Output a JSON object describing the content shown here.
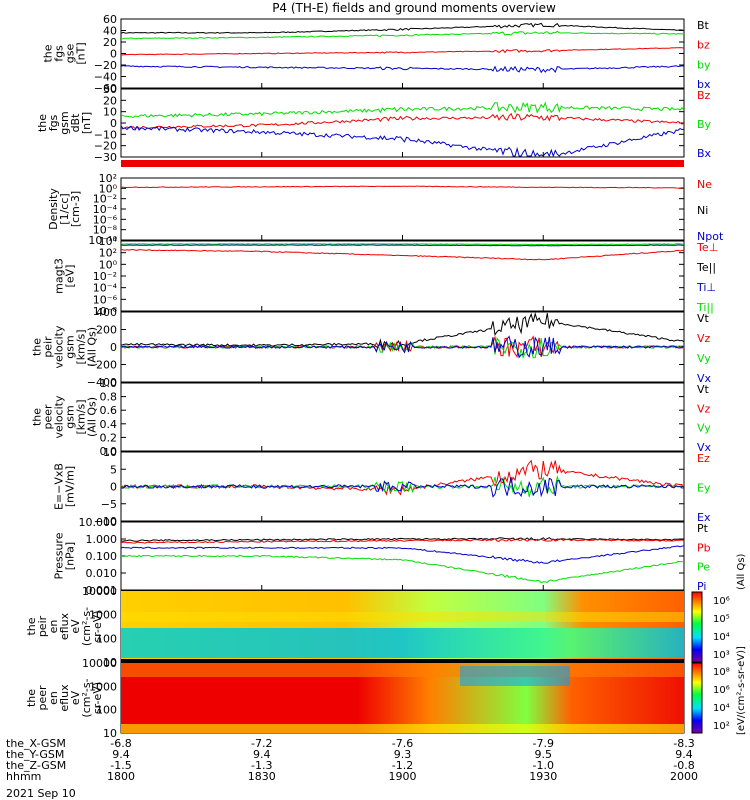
{
  "title": "P4 (TH-E) fields and ground moments overview",
  "colors": {
    "black": "#000000",
    "red": "#ee0000",
    "green": "#00dd00",
    "blue": "#0000cc"
  },
  "x_axis": {
    "rows": [
      {
        "label": "the_X-GSM",
        "ticks": [
          "-6.8",
          "-7.2",
          "-7.6",
          "-7.9",
          "-8.3"
        ]
      },
      {
        "label": "the_Y-GSM",
        "ticks": [
          "9.4",
          "9.4",
          "9.3",
          "9.5",
          "9.4"
        ]
      },
      {
        "label": "the_Z-GSM",
        "ticks": [
          "-1.5",
          "-1.3",
          "-1.2",
          "-1.0",
          "-0.8"
        ]
      },
      {
        "label": "hhmm",
        "ticks": [
          "1800",
          "1830",
          "1900",
          "1930",
          "2000"
        ]
      }
    ],
    "date": "2021 Sep 10"
  },
  "panels": [
    {
      "id": "p1",
      "ylabel": [
        "the",
        "fgs",
        "gse",
        "[nT]"
      ],
      "yticks": [
        "60",
        "40",
        "20",
        "0",
        "−20",
        "−40",
        "−60"
      ],
      "ylim": [
        -60,
        60
      ],
      "legend": [
        {
          "text": "Bt",
          "color": "#000000"
        },
        {
          "text": "bz",
          "color": "#ee0000"
        },
        {
          "text": "by",
          "color": "#00dd00"
        },
        {
          "text": "bx",
          "color": "#0000cc"
        }
      ]
    },
    {
      "id": "p2",
      "ylabel": [
        "the",
        "fgs",
        "gsm",
        "dBt",
        "[nT]"
      ],
      "yticks": [
        "30",
        "20",
        "10",
        "0",
        "−10",
        "−20",
        "−30"
      ],
      "ylim": [
        -30,
        30
      ],
      "legend": [
        {
          "text": "Bz",
          "color": "#ee0000"
        },
        {
          "text": "By",
          "color": "#00dd00"
        },
        {
          "text": "Bx",
          "color": "#0000cc"
        }
      ]
    },
    {
      "id": "p3",
      "ylabel": [
        "Density",
        "[1/cc]",
        "[cm-3]"
      ],
      "yticks": [
        "10²",
        "10⁰",
        "10⁻²",
        "10⁻⁴",
        "10⁻⁶",
        "10⁻⁸",
        "10⁻¹⁰"
      ],
      "ylim": [
        -10,
        2
      ],
      "log": true,
      "legend": [
        {
          "text": "Ne",
          "color": "#ee0000"
        },
        {
          "text": "Ni",
          "color": "#000000"
        },
        {
          "text": "Npot",
          "color": "#0000cc"
        }
      ]
    },
    {
      "id": "p4",
      "ylabel": [
        "magt3",
        "[eV]"
      ],
      "yticks": [
        "10⁴",
        "10²",
        "10⁰",
        "10⁻²",
        "10⁻⁴",
        "10⁻⁶",
        "10⁻⁸"
      ],
      "ylim": [
        -8,
        4
      ],
      "log": true,
      "legend": [
        {
          "text": "Te⊥",
          "color": "#ee0000"
        },
        {
          "text": "Te||",
          "color": "#000000"
        },
        {
          "text": "Ti⊥",
          "color": "#0000cc"
        },
        {
          "text": "Ti||",
          "color": "#00dd00"
        }
      ]
    },
    {
      "id": "p5",
      "ylabel": [
        "the",
        "peir",
        "velocity",
        "gsm",
        "[km/s]",
        "(All Qs)"
      ],
      "yticks": [
        "400",
        "200",
        "0",
        "−200",
        "−400"
      ],
      "ylim": [
        -400,
        400
      ],
      "legend": [
        {
          "text": "Vt",
          "color": "#000000"
        },
        {
          "text": "Vz",
          "color": "#ee0000"
        },
        {
          "text": "Vy",
          "color": "#00dd00"
        },
        {
          "text": "Vx",
          "color": "#0000cc"
        }
      ]
    },
    {
      "id": "p6",
      "ylabel": [
        "the",
        "peer",
        "velocity",
        "gsm",
        "[km/s]",
        "(All Qs)"
      ],
      "yticks": [
        "1.0",
        "0.8",
        "0.6",
        "0.4",
        "0.2",
        "0.0"
      ],
      "ylim": [
        0,
        1
      ],
      "legend": [
        {
          "text": "Vt",
          "color": "#000000"
        },
        {
          "text": "Vz",
          "color": "#ee0000"
        },
        {
          "text": "Vy",
          "color": "#00dd00"
        },
        {
          "text": "Vx",
          "color": "#0000cc"
        }
      ]
    },
    {
      "id": "p7",
      "ylabel": [
        "E=−VxB",
        "[mV/m]"
      ],
      "yticks": [
        "10",
        "5",
        "0",
        "−5",
        "−10"
      ],
      "ylim": [
        -10,
        10
      ],
      "legend": [
        {
          "text": "Ez",
          "color": "#ee0000"
        },
        {
          "text": "Ey",
          "color": "#00dd00"
        },
        {
          "text": "Ex",
          "color": "#0000cc"
        }
      ]
    },
    {
      "id": "p8",
      "ylabel": [
        "Pressure",
        "[nPa]"
      ],
      "yticks": [
        "10.000",
        "1.000",
        "0.100",
        "0.010",
        "0.001"
      ],
      "ylim": [
        -3,
        1
      ],
      "log": true,
      "legend": [
        {
          "text": "Pt",
          "color": "#000000"
        },
        {
          "text": "Pb",
          "color": "#ee0000"
        },
        {
          "text": "Pe",
          "color": "#00dd00"
        },
        {
          "text": "Pi",
          "color": "#0000cc"
        }
      ]
    },
    {
      "id": "p9",
      "ylabel": [
        "the",
        "peir",
        "en",
        "eflux",
        "eV",
        "(cm²-s-",
        "sr-eV)"
      ],
      "yticks": [
        "10000",
        "1000",
        "100",
        "10"
      ],
      "ylim": [
        1,
        4.2
      ],
      "log": true
    },
    {
      "id": "p10",
      "ylabel": [
        "the",
        "peer",
        "en",
        "eflux",
        "eV",
        "(cm²-s-",
        "sr-eV)"
      ],
      "yticks": [
        "10000",
        "1000",
        "100",
        "10"
      ],
      "ylim": [
        1,
        4.2
      ],
      "log": true
    }
  ],
  "colorbars": [
    {
      "ticks": [
        "10⁶",
        "10⁵",
        "10⁴",
        "10³"
      ],
      "label": "[eV/(cm²-s-sr-eV)]",
      "label2": "(All Qs)"
    },
    {
      "ticks": [
        "10⁸",
        "10⁶",
        "10⁴",
        "10²"
      ],
      "label": "[eV/(cm²-s-sr-eV)]"
    }
  ],
  "chart_data": {
    "type": "line",
    "title": "P4 (TH-E) fields and ground moments overview",
    "x": [
      "1800",
      "1830",
      "1900",
      "1930",
      "2000"
    ],
    "xlabel": "hhmm",
    "series": [
      {
        "name": "Bt",
        "panel": "p1",
        "values": [
          36,
          36,
          42,
          50,
          40
        ]
      },
      {
        "name": "bz",
        "panel": "p1",
        "values": [
          -2,
          0,
          2,
          5,
          10
        ]
      },
      {
        "name": "by",
        "panel": "p1",
        "values": [
          26,
          28,
          32,
          36,
          34
        ]
      },
      {
        "name": "bx",
        "panel": "p1",
        "values": [
          -22,
          -24,
          -26,
          -28,
          -22
        ]
      },
      {
        "name": "Bz",
        "panel": "p2",
        "values": [
          -4,
          -2,
          4,
          5,
          0
        ]
      },
      {
        "name": "By",
        "panel": "p2",
        "values": [
          6,
          8,
          12,
          14,
          12
        ]
      },
      {
        "name": "Bx",
        "panel": "p2",
        "values": [
          -4,
          -8,
          -14,
          -30,
          -6
        ]
      },
      {
        "name": "Ne",
        "panel": "p3",
        "values": [
          0.2,
          0.3,
          0.4,
          0.2,
          0.1
        ]
      },
      {
        "name": "Te⊥",
        "panel": "p4",
        "values": [
          2.5,
          2.2,
          1.5,
          0.8,
          2.4
        ]
      },
      {
        "name": "Vt",
        "panel": "p5",
        "values": [
          30,
          20,
          40,
          300,
          60
        ]
      },
      {
        "name": "Ez",
        "panel": "p7",
        "values": [
          0,
          0,
          -1,
          5,
          0
        ]
      },
      {
        "name": "Pt",
        "panel": "p8",
        "values": [
          0.8,
          0.9,
          1.0,
          1.0,
          0.9
        ]
      },
      {
        "name": "Pb",
        "panel": "p8",
        "values": [
          0.6,
          0.7,
          0.8,
          0.9,
          0.8
        ]
      },
      {
        "name": "Pe",
        "panel": "p8",
        "values": [
          0.1,
          0.1,
          0.06,
          0.003,
          0.05
        ]
      },
      {
        "name": "Pi",
        "panel": "p8",
        "values": [
          0.3,
          0.3,
          0.3,
          0.04,
          0.4
        ]
      }
    ]
  }
}
